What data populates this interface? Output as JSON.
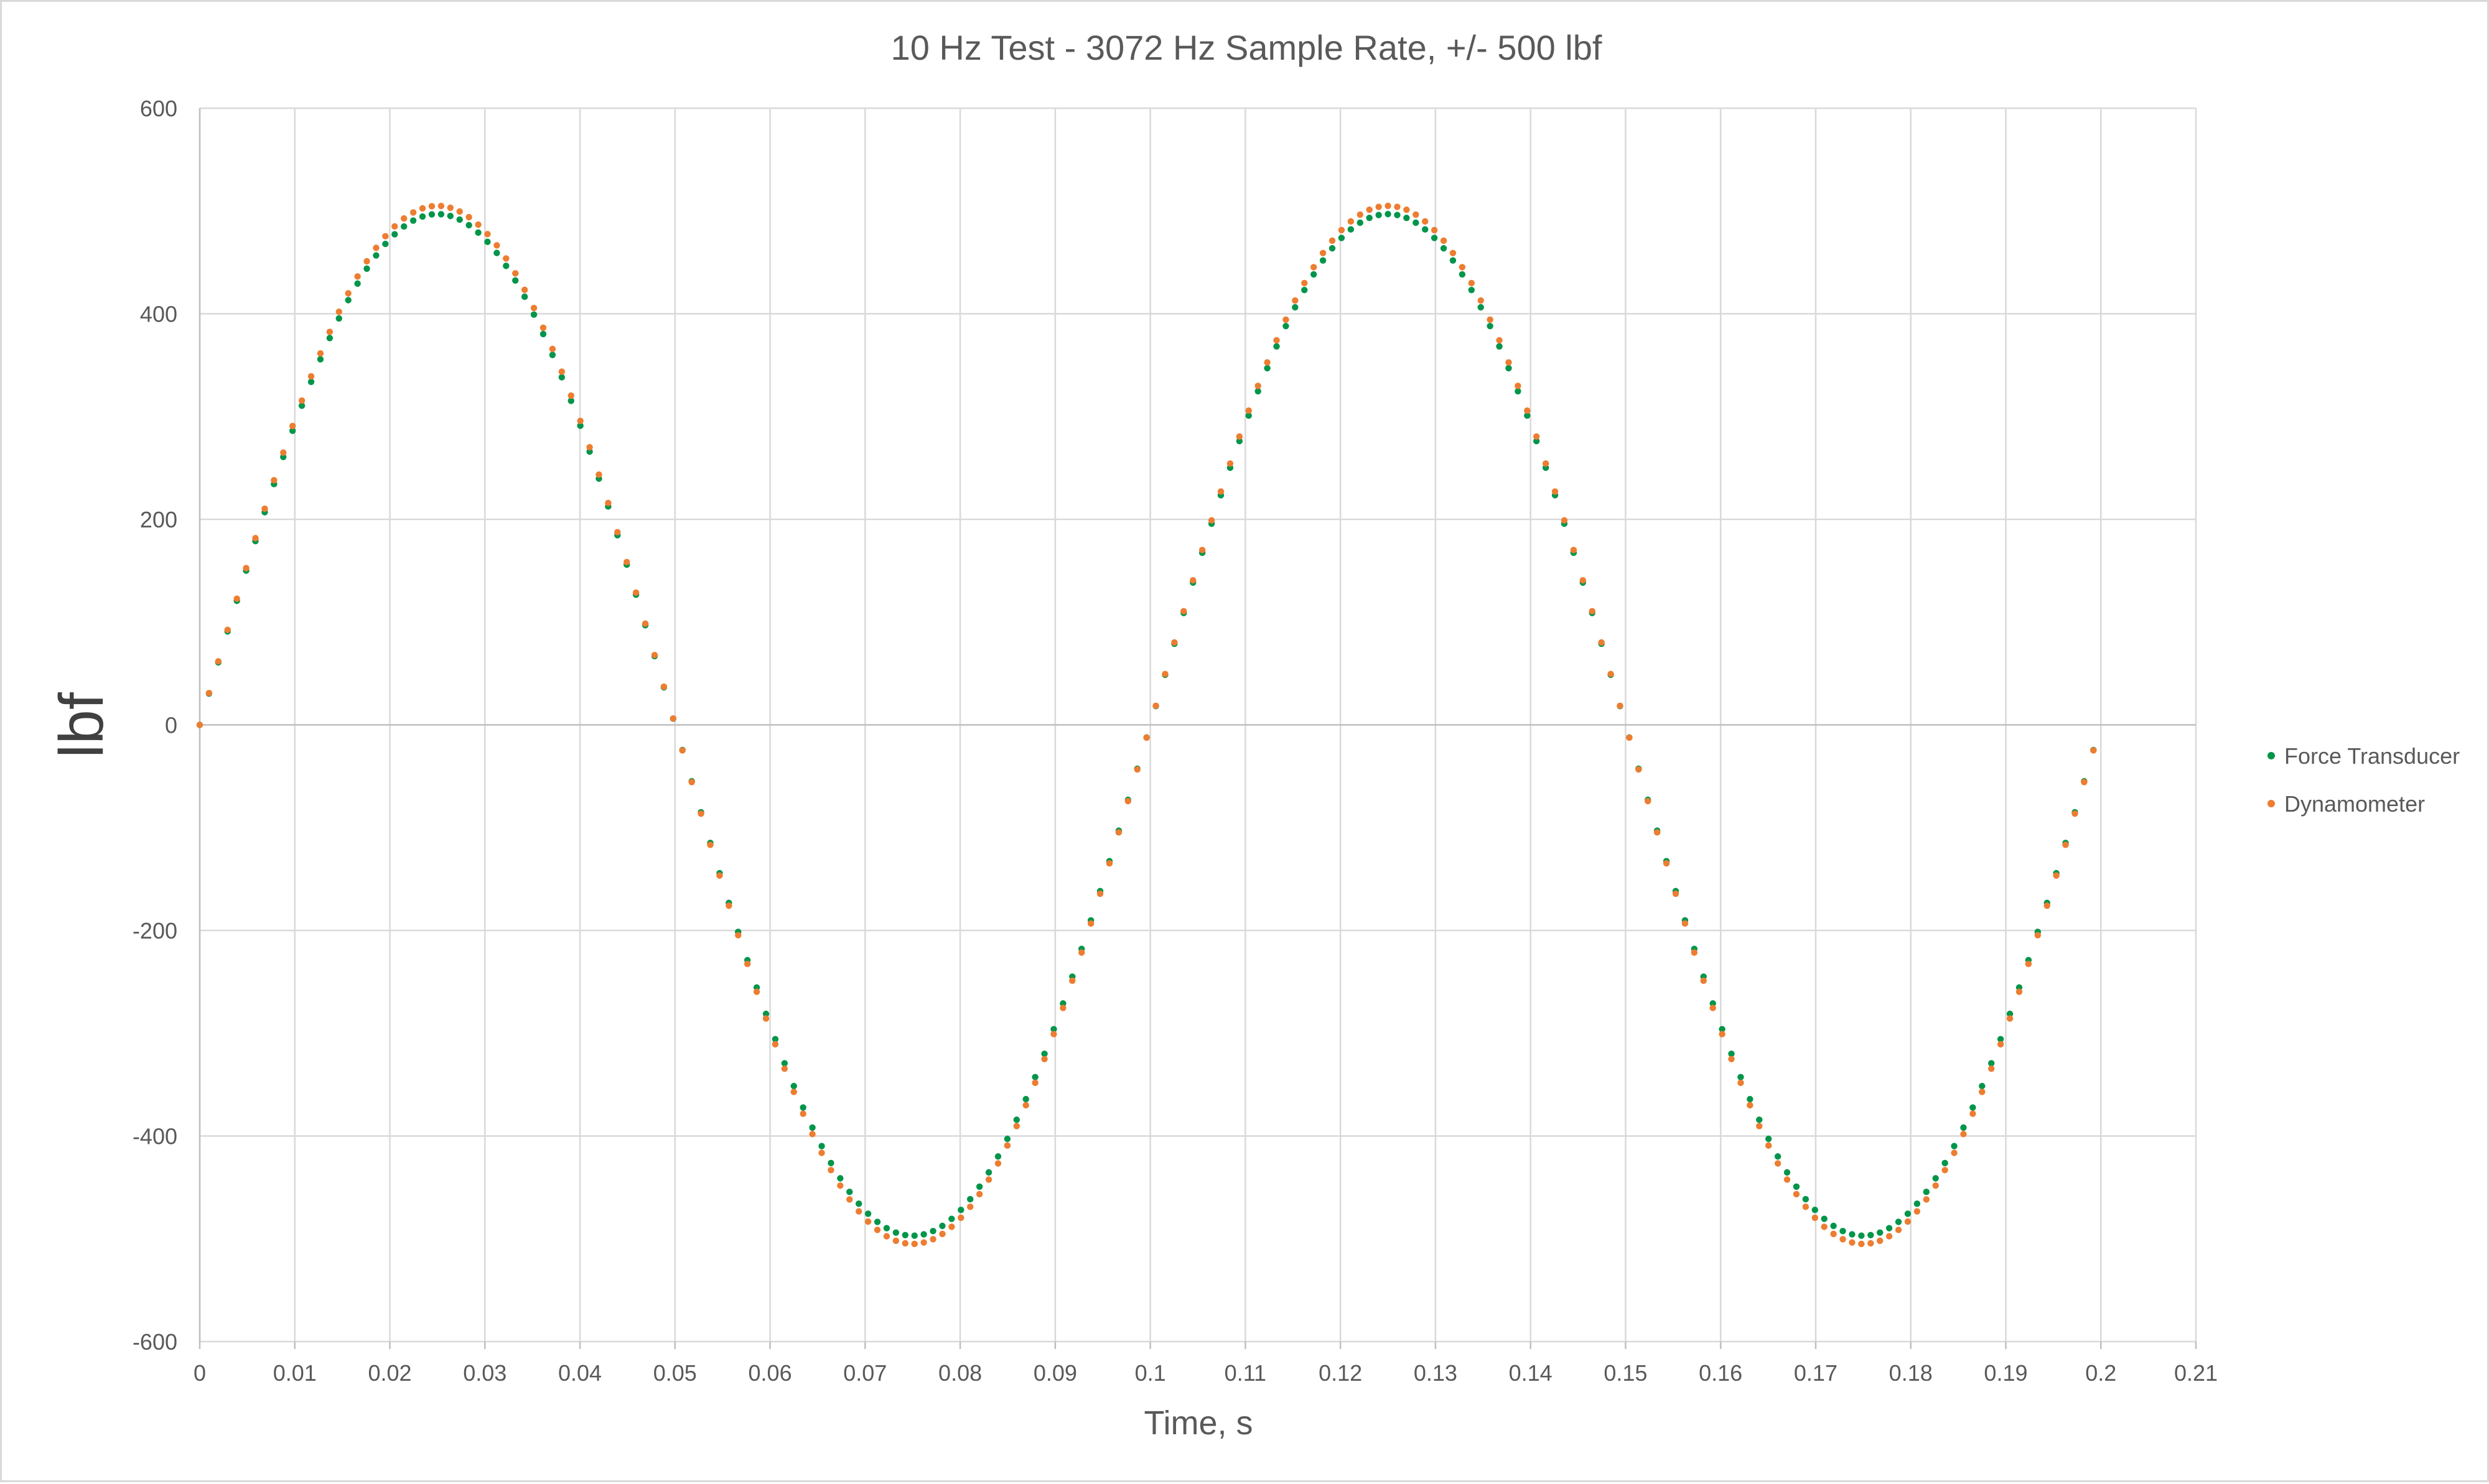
{
  "chart_data": {
    "type": "scatter",
    "title": "10 Hz Test - 3072 Hz Sample Rate, +/- 500 lbf",
    "xlabel": "Time, s",
    "ylabel": "lbf",
    "xlim": [
      0,
      0.21
    ],
    "ylim": [
      -600,
      600
    ],
    "x_ticks": [
      "0",
      "0.01",
      "0.02",
      "0.03",
      "0.04",
      "0.05",
      "0.06",
      "0.07",
      "0.08",
      "0.09",
      "0.1",
      "0.11",
      "0.12",
      "0.13",
      "0.14",
      "0.15",
      "0.16",
      "0.17",
      "0.18",
      "0.19",
      "0.2",
      "0.21"
    ],
    "y_ticks": [
      "600",
      "400",
      "200",
      "0",
      "-200",
      "-400",
      "-600"
    ],
    "grid": true,
    "legend_position": "right",
    "series": [
      {
        "name": "Force Transducer",
        "color": "#00954a",
        "frequency_hz": 10,
        "amplitude": 497,
        "x_start": 0,
        "x_end": 0.2,
        "sample_rate_hz": 3072
      },
      {
        "name": "Dynamometer",
        "color": "#ed7d31",
        "frequency_hz": 10,
        "amplitude": 505,
        "x_start": 0,
        "x_end": 0.2,
        "sample_rate_hz": 3072
      }
    ]
  }
}
